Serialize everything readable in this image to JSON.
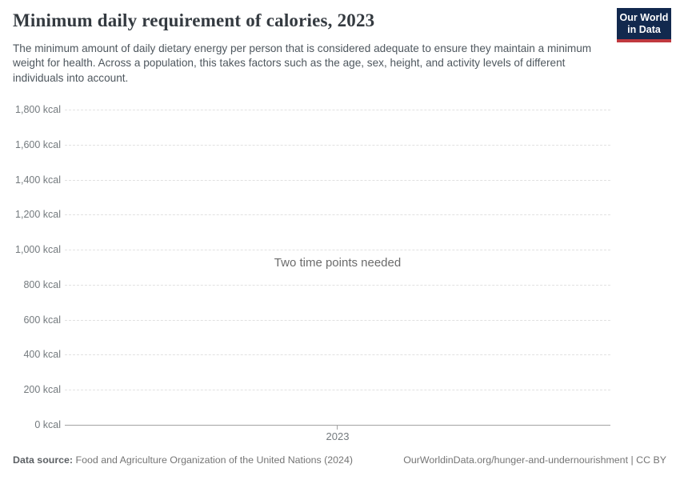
{
  "header": {
    "title": "Minimum daily requirement of calories, 2023",
    "subtitle": "The minimum amount of daily dietary energy per person that is considered adequate to ensure they maintain a minimum weight for health. Across a population, this takes factors such as the age, sex, height, and activity levels of different individuals into account.",
    "logo": {
      "line1": "Our World",
      "line2": "in Data"
    }
  },
  "chart_data": {
    "type": "line",
    "title": "Minimum daily requirement of calories, 2023",
    "note": "Two time points needed",
    "series": [],
    "x_ticks": [
      "2023"
    ],
    "y_ticks": [
      "1,800 kcal",
      "1,600 kcal",
      "1,400 kcal",
      "1,200 kcal",
      "1,000 kcal",
      "800 kcal",
      "600 kcal",
      "400 kcal",
      "200 kcal",
      "0 kcal"
    ],
    "ylim": [
      0,
      1800
    ],
    "y_unit": "kcal",
    "grid": "horizontal-dashed",
    "legend": "none"
  },
  "footer": {
    "data_source_label": "Data source:",
    "data_source_value": "Food and Agriculture Organization of the United Nations (2024)",
    "url": "OurWorldinData.org/hunger-and-undernourishment",
    "license_suffix": " | CC BY"
  },
  "colors": {
    "logo_background": "#12294e",
    "logo_stripe": "#c0393f",
    "gridline": "#e1e1e1",
    "axis_line": "#a3a3a3",
    "title_text": "#343a40",
    "subtitle_text": "#4e575e",
    "note_text": "#6b6b6b"
  }
}
